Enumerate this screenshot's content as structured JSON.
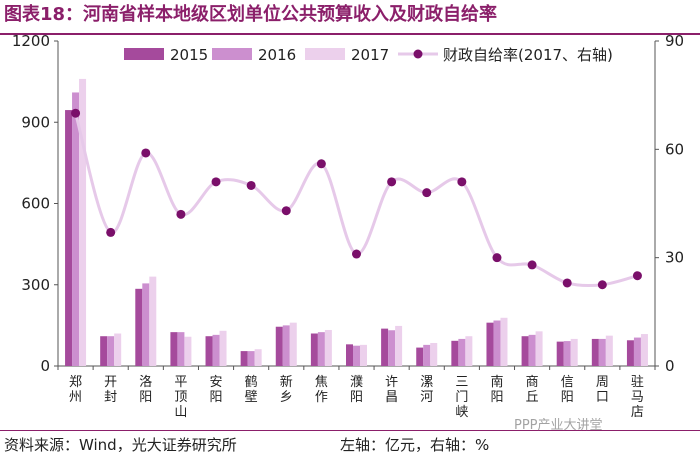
{
  "header": {
    "title": "图表18：河南省样本地级区划单位公共预算收入及财政自给率"
  },
  "footer": {
    "source": "资料来源：Wind，光大证券研究所",
    "unit_note": "左轴：亿元，右轴：%",
    "watermark": "PPP产业大讲堂"
  },
  "colors": {
    "title": "#8b1f6a",
    "bar_2015": "#a54a9c",
    "bar_2016": "#cc8fcf",
    "bar_2017": "#ecd0ec",
    "line": "#e6c9e9",
    "marker": "#7a0f6a"
  },
  "chart_data": {
    "type": "bar",
    "categories": [
      "郑州",
      "开封",
      "洛阳",
      "平顶山",
      "安阳",
      "鹤壁",
      "新乡",
      "焦作",
      "濮阳",
      "许昌",
      "漯河",
      "三门峡",
      "南阳",
      "商丘",
      "信阳",
      "周口",
      "驻马店"
    ],
    "series": [
      {
        "name": "2015",
        "type": "bar",
        "axis": "left",
        "values": [
          945,
          110,
          285,
          125,
          110,
          55,
          145,
          120,
          80,
          138,
          68,
          93,
          160,
          110,
          90,
          100,
          95
        ]
      },
      {
        "name": "2016",
        "type": "bar",
        "axis": "left",
        "values": [
          1010,
          110,
          305,
          125,
          115,
          55,
          150,
          125,
          75,
          132,
          78,
          100,
          168,
          115,
          92,
          100,
          105
        ]
      },
      {
        "name": "2017",
        "type": "bar",
        "axis": "left",
        "values": [
          1060,
          120,
          330,
          108,
          130,
          62,
          160,
          133,
          78,
          148,
          85,
          110,
          178,
          128,
          100,
          112,
          118
        ]
      },
      {
        "name": "财政自给率(2017、右轴)",
        "type": "line",
        "axis": "right",
        "values": [
          70,
          37,
          59,
          42,
          51,
          50,
          43,
          56,
          31,
          51,
          48,
          51,
          30,
          28,
          23,
          22.5,
          25
        ]
      }
    ],
    "left_axis": {
      "min": 0,
      "max": 1200,
      "ticks": [
        0,
        300,
        600,
        900,
        1200
      ]
    },
    "right_axis": {
      "min": 0,
      "max": 90,
      "ticks": [
        0,
        30,
        60,
        90
      ]
    },
    "legend_position": "top-right",
    "grid": false
  }
}
